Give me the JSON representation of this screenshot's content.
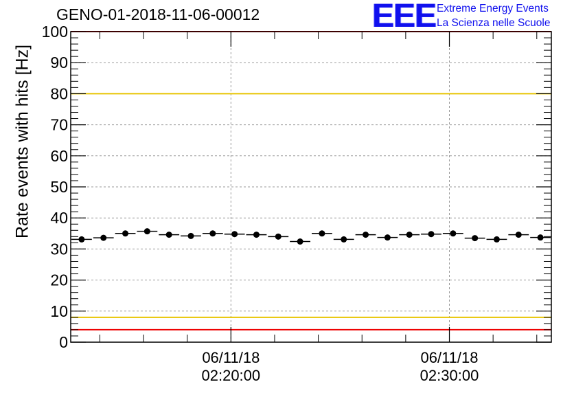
{
  "header": {
    "title": "GENO-01-2018-11-06-00012",
    "logo_text": "EEE",
    "logo_line1": "Extreme Energy Events",
    "logo_line2": "La Scienza nelle Scuole"
  },
  "chart_data": {
    "type": "scatter",
    "title": "GENO-01-2018-11-06-00012",
    "ylabel": "Rate events with hits [Hz]",
    "xlabel": "",
    "ylim": [
      0,
      100
    ],
    "yticks": [
      0,
      10,
      20,
      30,
      40,
      50,
      60,
      70,
      80,
      90,
      100
    ],
    "xlim": [
      "2018-11-06T02:12:40",
      "2018-11-06T02:34:40"
    ],
    "xticks": [
      {
        "time": "2018-11-06T02:20:00",
        "date": "06/11/18",
        "clock": "02:20:00"
      },
      {
        "time": "2018-11-06T02:30:00",
        "date": "06/11/18",
        "clock": "02:30:00"
      }
    ],
    "grid": true,
    "reference_lines": [
      {
        "y": 100,
        "color": "#ee0000"
      },
      {
        "y": 80,
        "color": "#e8c400"
      },
      {
        "y": 8,
        "color": "#e8c400"
      },
      {
        "y": 4,
        "color": "#ee0000"
      }
    ],
    "marker_color": "#000000",
    "x": [
      "2018-11-06T02:13:10",
      "2018-11-06T02:14:10",
      "2018-11-06T02:15:10",
      "2018-11-06T02:16:10",
      "2018-11-06T02:17:10",
      "2018-11-06T02:18:10",
      "2018-11-06T02:19:10",
      "2018-11-06T02:20:10",
      "2018-11-06T02:21:10",
      "2018-11-06T02:22:10",
      "2018-11-06T02:23:10",
      "2018-11-06T02:24:10",
      "2018-11-06T02:25:10",
      "2018-11-06T02:26:10",
      "2018-11-06T02:27:10",
      "2018-11-06T02:28:10",
      "2018-11-06T02:29:10",
      "2018-11-06T02:30:10",
      "2018-11-06T02:31:10",
      "2018-11-06T02:32:10",
      "2018-11-06T02:33:10",
      "2018-11-06T02:34:10"
    ],
    "values": [
      33.1,
      33.6,
      35.0,
      35.7,
      34.6,
      34.2,
      35.0,
      34.8,
      34.6,
      34.0,
      32.4,
      35.0,
      33.1,
      34.6,
      33.7,
      34.6,
      34.8,
      35.0,
      33.5,
      33.1,
      34.6,
      33.7
    ]
  }
}
